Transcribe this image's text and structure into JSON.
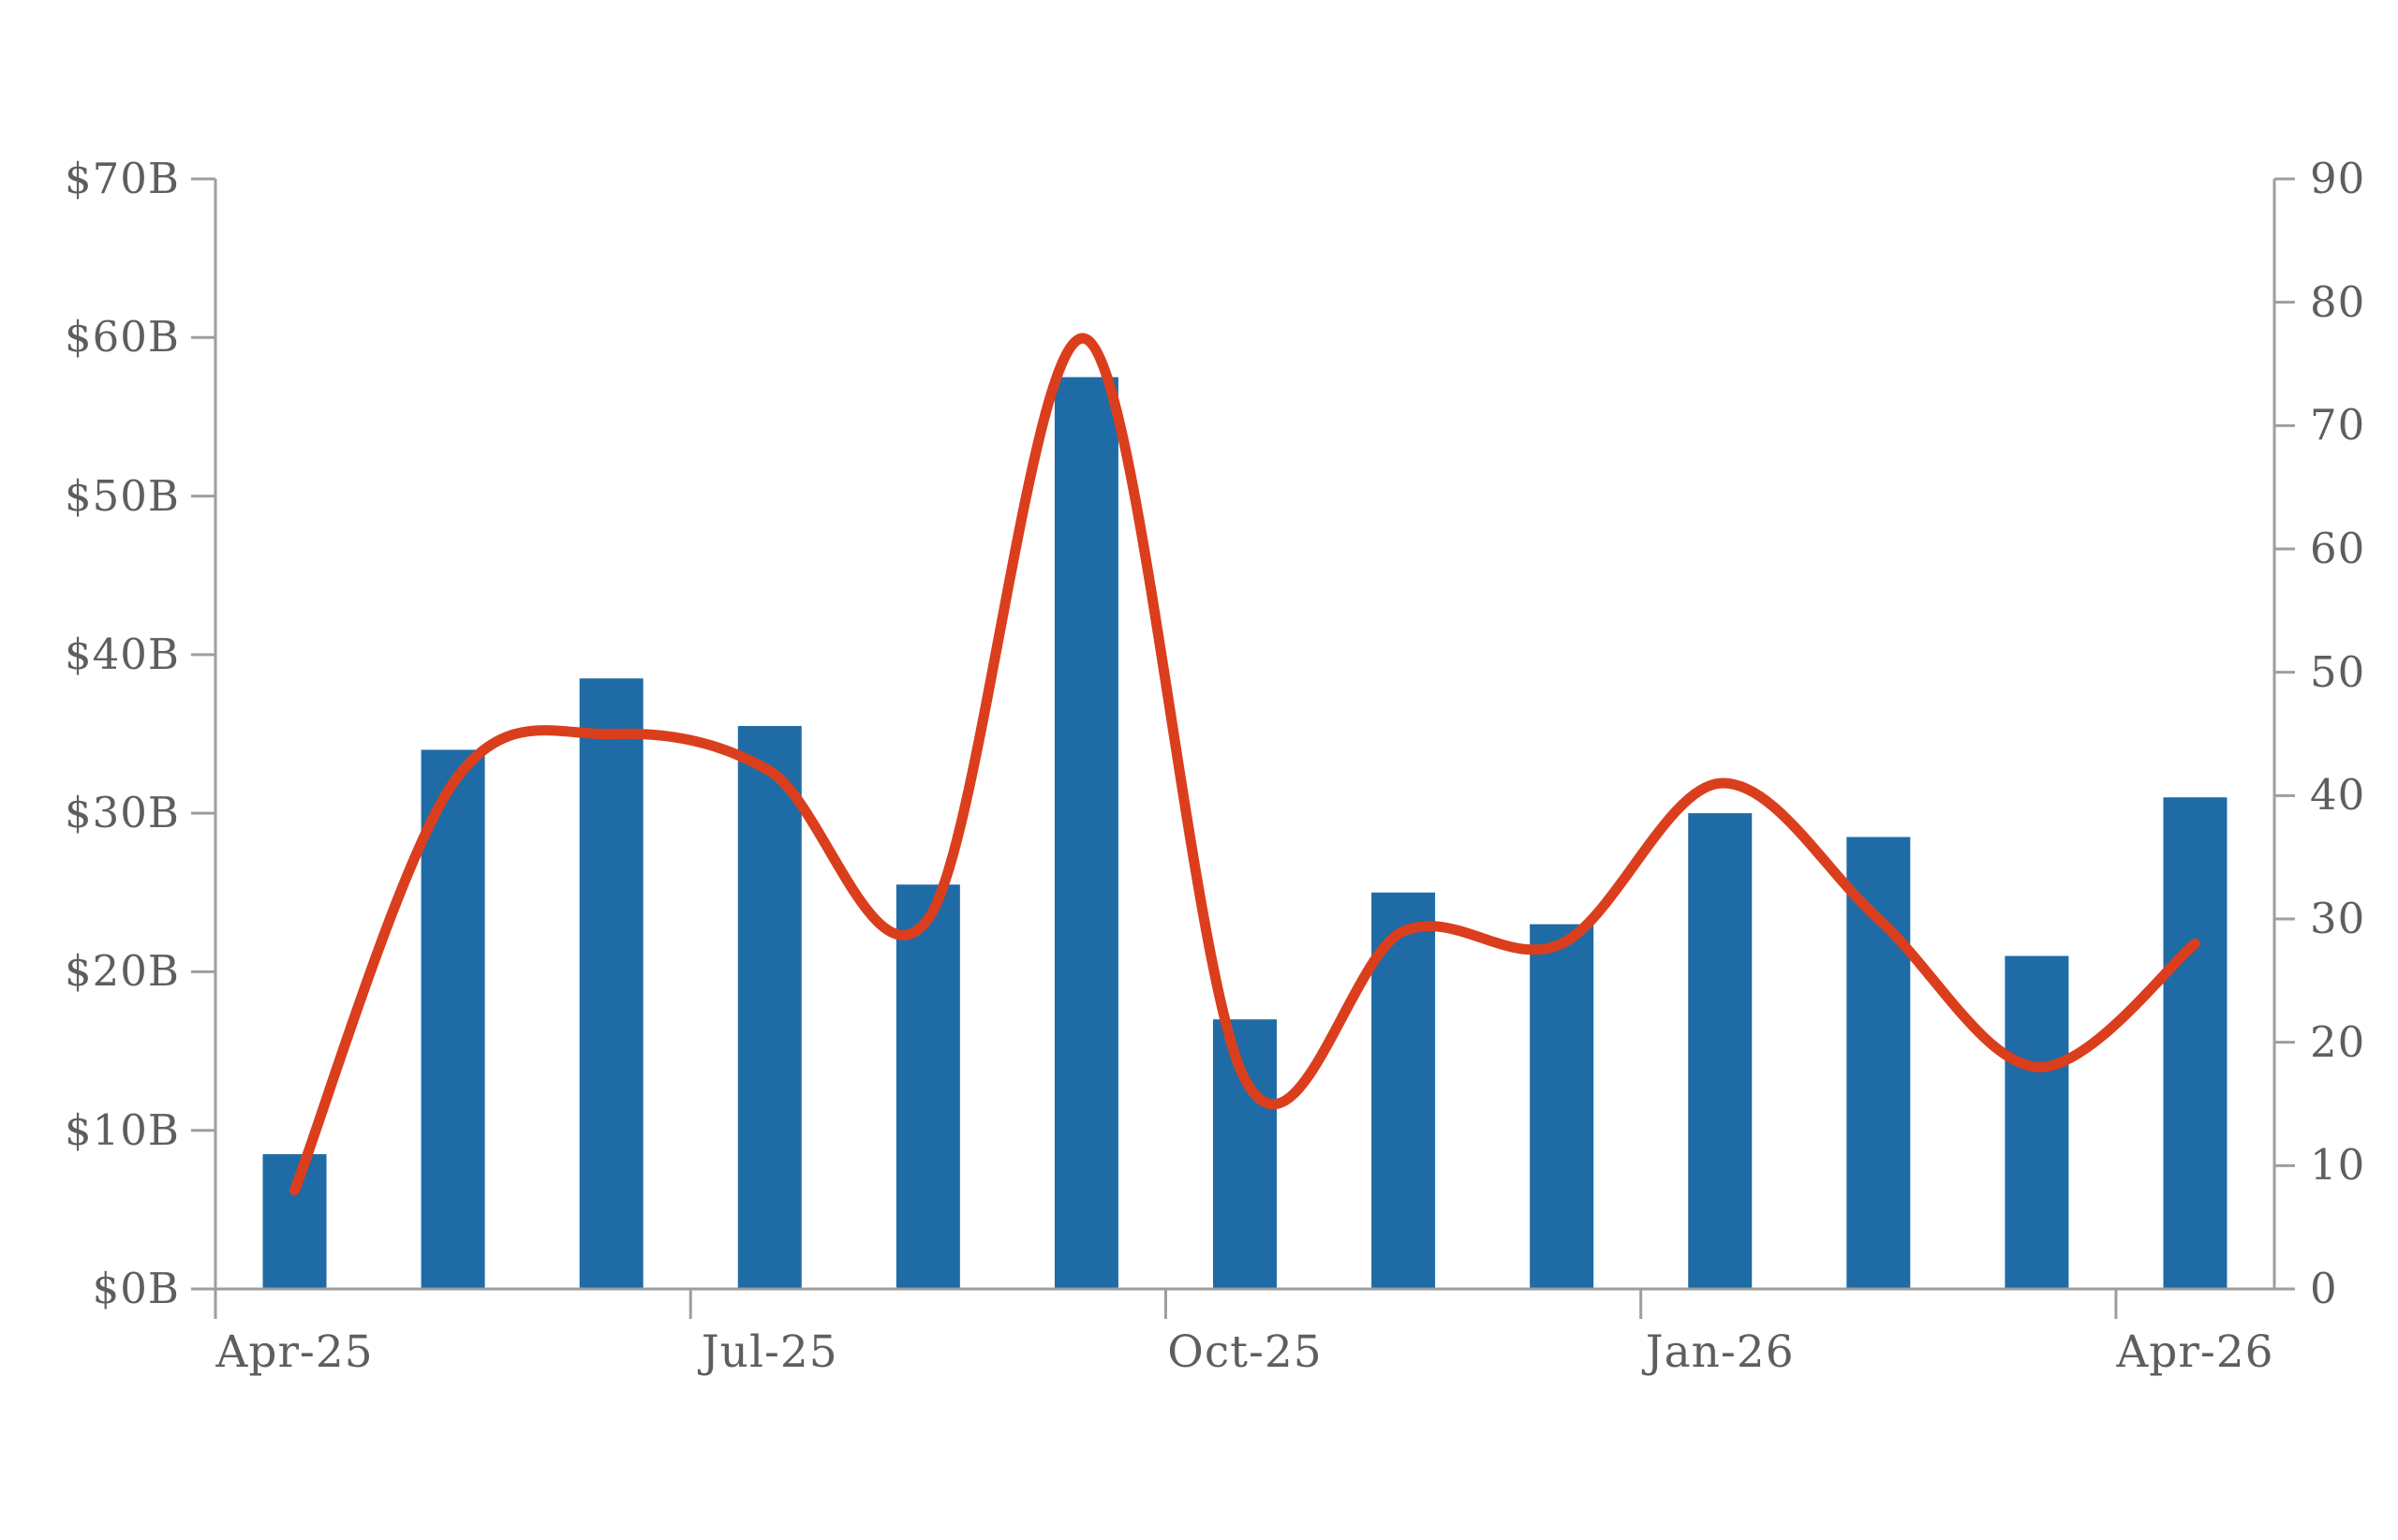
{
  "chart_data": {
    "type": "combo",
    "title": "",
    "categories": [
      "Apr-25",
      "May-25",
      "Jun-25",
      "Jul-25",
      "Aug-25",
      "Sep-25",
      "Oct-25",
      "Nov-25",
      "Dec-25",
      "Jan-26",
      "Feb-26",
      "Mar-26",
      "Apr-26"
    ],
    "x_axis": {
      "tick_labels": [
        "Apr-25",
        "Jul-25",
        "Oct-25",
        "Jan-26",
        "Apr-26"
      ],
      "tick_indices": [
        0,
        3,
        6,
        9,
        12
      ]
    },
    "left_axis": {
      "min": 0,
      "max": 70,
      "tick_step": 10,
      "tick_labels": [
        "$0B",
        "$10B",
        "$20B",
        "$30B",
        "$40B",
        "$50B",
        "$60B",
        "$70B"
      ]
    },
    "right_axis": {
      "min": 0,
      "max": 90,
      "tick_step": 10,
      "tick_labels": [
        "0",
        "10",
        "20",
        "30",
        "40",
        "50",
        "60",
        "70",
        "80",
        "90"
      ]
    },
    "series": [
      {
        "name": "bar-series",
        "type": "bar",
        "axis": "left",
        "color": "#1f6ba5",
        "values": [
          8.5,
          34,
          38.5,
          35.5,
          25.5,
          57.5,
          17,
          25,
          23,
          30,
          28.5,
          21,
          31
        ]
      },
      {
        "name": "line-series",
        "type": "line",
        "axis": "right",
        "smooth": true,
        "color": "#db3e1d",
        "values": [
          8,
          41,
          45,
          42,
          30,
          77,
          17,
          29,
          28,
          41,
          30,
          18,
          28
        ]
      }
    ],
    "grid": false,
    "legend": false
  },
  "colors": {
    "background": "#ffffff",
    "axis_line": "#9e9e9e",
    "tick_text": "#5e5e5e",
    "bar": "#1f6ba5",
    "line": "#db3e1d"
  }
}
